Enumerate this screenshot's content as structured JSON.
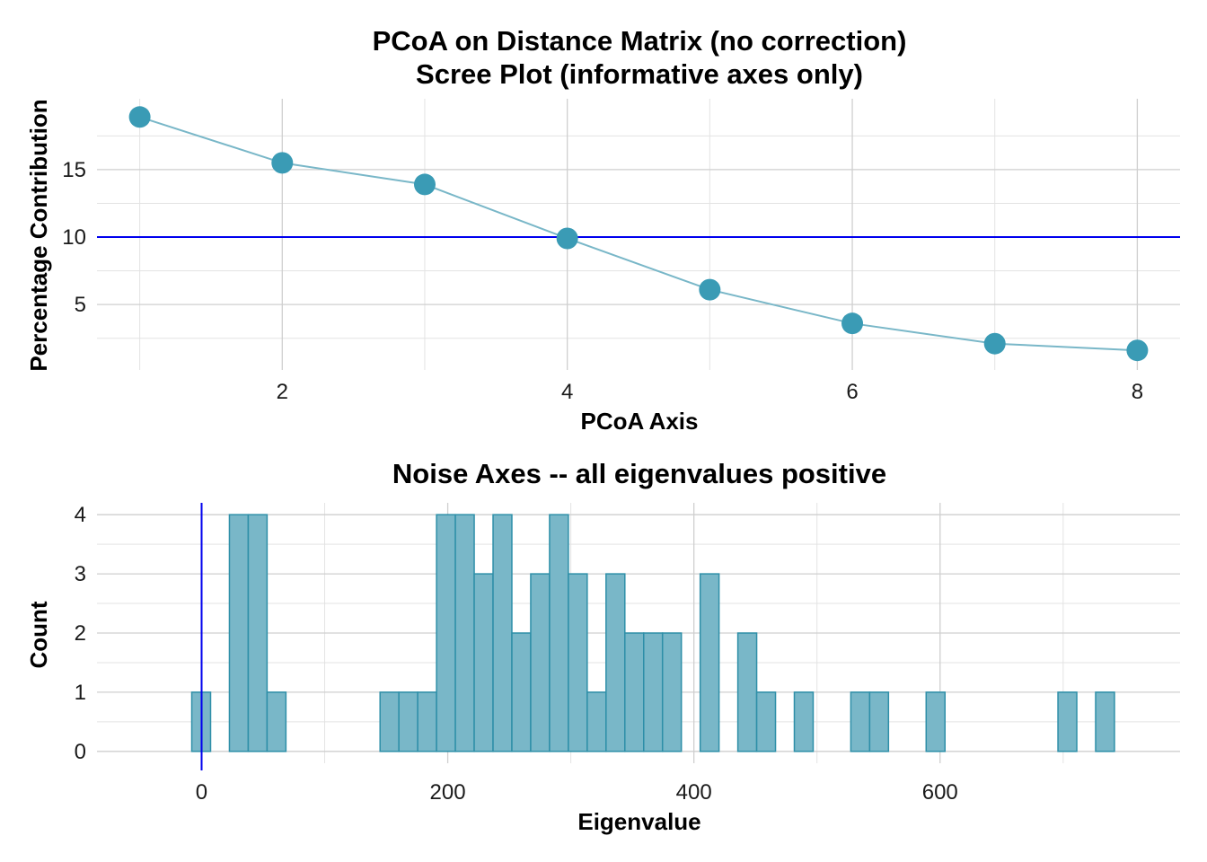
{
  "colors": {
    "point_fill": "#3a9bb5",
    "line": "#79b7c8",
    "bar_fill": "#79b7c8",
    "bar_stroke": "#2e8fa8",
    "reference_line": "#0000ee",
    "grid": "#cfcfcf"
  },
  "chart_data": [
    {
      "type": "line",
      "title": "PCoA on Distance Matrix (no correction)",
      "subtitle": "Scree Plot (informative axes only)",
      "xlabel": "PCoA Axis",
      "ylabel": "Percentage Contribution",
      "x": [
        1,
        2,
        3,
        4,
        5,
        6,
        7,
        8
      ],
      "y": [
        18.9,
        15.5,
        13.9,
        9.9,
        6.1,
        3.6,
        2.1,
        1.6
      ],
      "xlim": [
        0.7,
        8.3
      ],
      "ylim": [
        0.15,
        20.25
      ],
      "x_ticks": [
        2,
        4,
        6,
        8
      ],
      "y_ticks": [
        5,
        10,
        15
      ],
      "hline": 10,
      "markers": "filled circles",
      "grid": true,
      "legend": "none"
    },
    {
      "type": "bar",
      "subtype": "histogram",
      "title": "Noise Axes -- all eigenvalues positive",
      "xlabel": "Eigenvalue",
      "ylabel": "Count",
      "bin_width": 15.3,
      "bin_start": -8,
      "counts": [
        1,
        0,
        4,
        4,
        1,
        0,
        0,
        0,
        0,
        0,
        1,
        1,
        1,
        4,
        4,
        3,
        4,
        2,
        3,
        4,
        3,
        1,
        3,
        2,
        2,
        2,
        0,
        3,
        0,
        2,
        1,
        0,
        1,
        0,
        0,
        1,
        1,
        0,
        0,
        1,
        0,
        0,
        0,
        0,
        0,
        0,
        1,
        0,
        1
      ],
      "xlim": [
        -85,
        795
      ],
      "ylim": [
        -0.2,
        4.2
      ],
      "x_ticks": [
        0,
        200,
        400,
        600
      ],
      "y_ticks": [
        0,
        1,
        2,
        3,
        4
      ],
      "vline": 0,
      "grid": true,
      "legend": "none"
    }
  ]
}
